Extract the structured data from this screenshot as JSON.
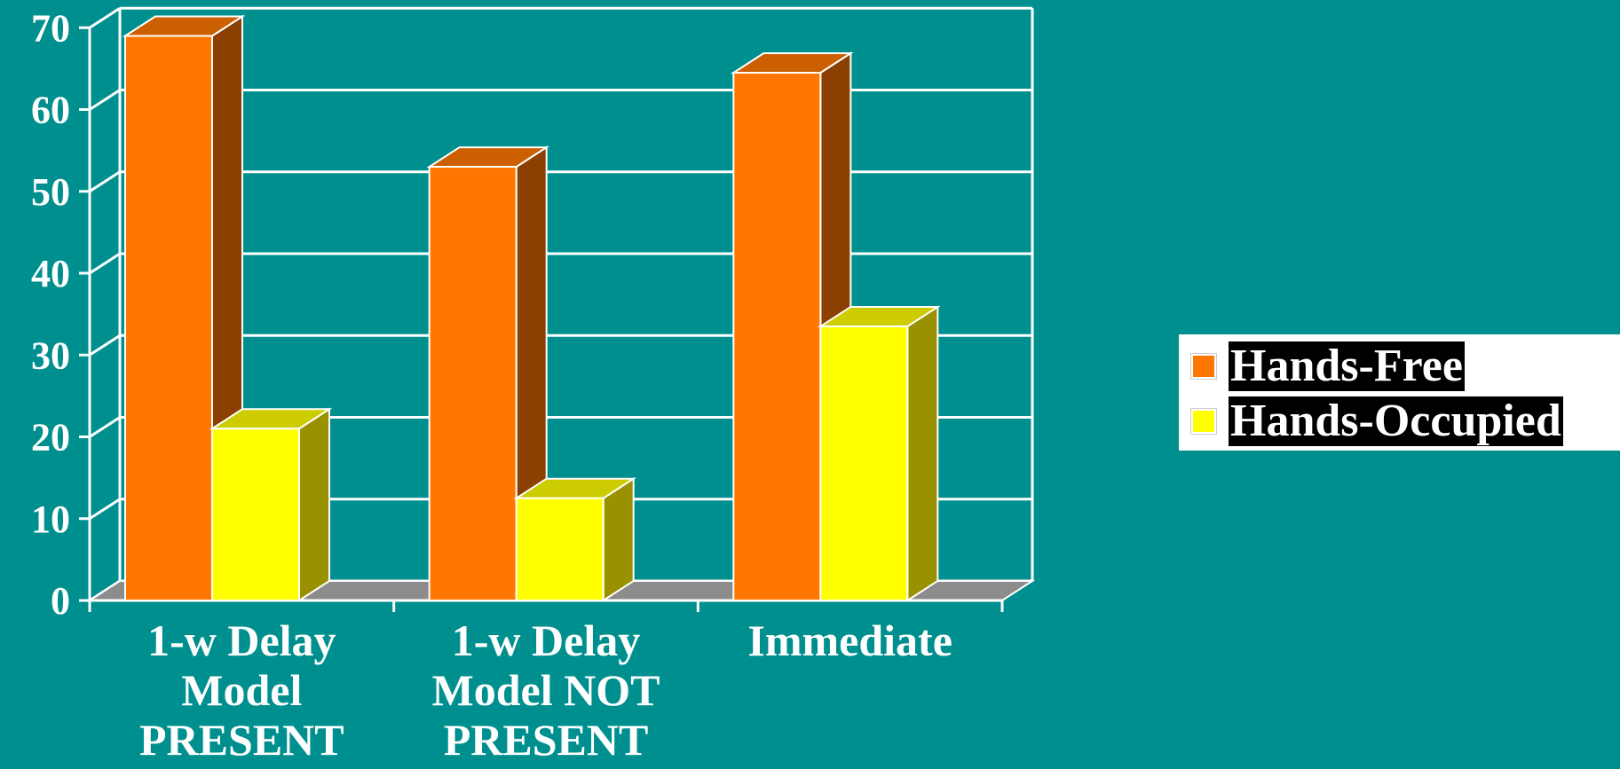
{
  "chart_data": {
    "type": "bar",
    "categories": [
      [
        "1-w Delay",
        "Model",
        "PRESENT"
      ],
      [
        "1-w Delay",
        "Model NOT",
        "PRESENT"
      ],
      [
        "Immediate"
      ]
    ],
    "series": [
      {
        "name": "Hands-Free",
        "values": [
          69,
          53,
          64.5
        ],
        "color": "#ff7700"
      },
      {
        "name": "Hands-Occupied",
        "values": [
          21,
          12.5,
          33.5
        ],
        "color": "#ffff00"
      }
    ],
    "ylim": [
      0,
      70
    ],
    "yticks": [
      "0",
      "10",
      "20",
      "30",
      "40",
      "50",
      "60",
      "70"
    ],
    "grid": true,
    "three_d": true,
    "legend_position": "right",
    "colors": {
      "background": "#008f8f",
      "grid": "#ffffff",
      "floor": "#8c8c8c",
      "orange_side": "#8b3f00",
      "orange_top": "#cc5f00",
      "yellow_side": "#999100",
      "yellow_top": "#cccc00"
    }
  }
}
